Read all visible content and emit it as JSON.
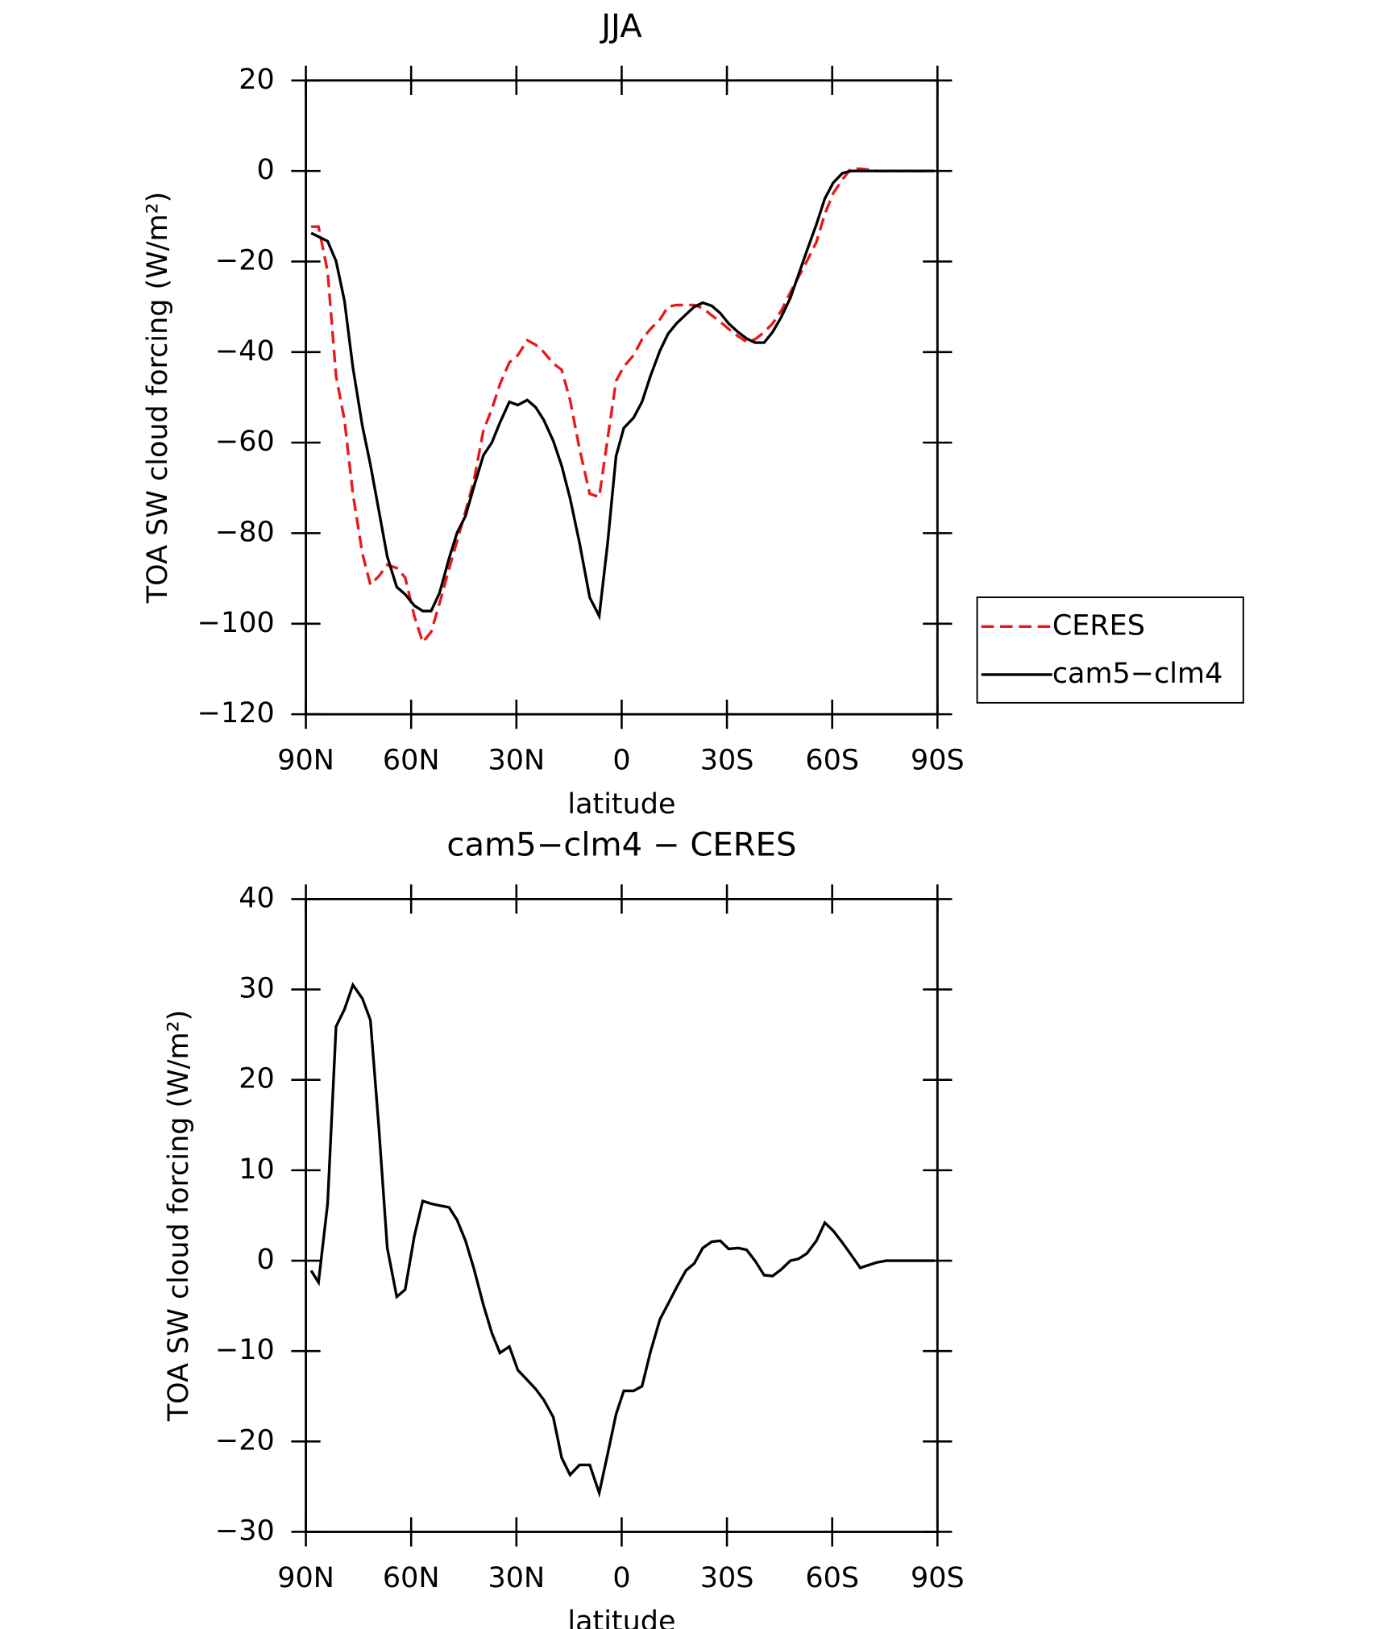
{
  "chart_data": [
    {
      "type": "line",
      "title": "JJA",
      "xlabel": "latitude",
      "ylabel": "TOA SW cloud forcing (W/m²)",
      "x": [
        88.5,
        86.4,
        83.8,
        81.4,
        79,
        76.6,
        73.9,
        71.6,
        69.2,
        66.8,
        64.1,
        61.7,
        59.1,
        56.7,
        54.3,
        51.9,
        49.2,
        46.9,
        44.5,
        42.1,
        39.4,
        37,
        34.7,
        32,
        29.6,
        26.9,
        24.5,
        22.2,
        19.5,
        17.1,
        14.7,
        12,
        9.1,
        6.4,
        4,
        1.6,
        -0.6,
        -3.4,
        -5.8,
        -8.2,
        -10.9,
        -13.2,
        -15.6,
        -18.3,
        -20.7,
        -23.1,
        -25.7,
        -28.1,
        -30.5,
        -33.2,
        -35.6,
        -38,
        -40.6,
        -43,
        -45.4,
        -48.1,
        -50.4,
        -52.8,
        -55.5,
        -57.9,
        -60.3,
        -62.9,
        -65.3,
        -68,
        -70.3,
        -72.7,
        -75.4,
        -89.1
      ],
      "xlim": [
        90,
        -90
      ],
      "xticks": [
        {
          "value": 90,
          "label": "90N"
        },
        {
          "value": 60,
          "label": "60N"
        },
        {
          "value": 30,
          "label": "30N"
        },
        0,
        {
          "value": -30,
          "label": "30S"
        },
        {
          "value": -60,
          "label": "60S"
        },
        {
          "value": -90,
          "label": "90S"
        }
      ],
      "ylim": [
        -120,
        20
      ],
      "yticks": [
        -120,
        -100,
        -80,
        -60,
        -40,
        -20,
        0,
        20
      ],
      "legend": "right",
      "series": [
        {
          "name": "CERES",
          "color": "#e8191b",
          "dash": true,
          "values": [
            -12.3,
            -12.3,
            -22.2,
            -45.3,
            -55,
            -71.3,
            -84.5,
            -91.4,
            -89.5,
            -87,
            -87.7,
            -89.8,
            -98.3,
            -104.1,
            -101.8,
            -95.5,
            -87.9,
            -81.7,
            -75.2,
            -68.3,
            -57.3,
            -52.6,
            -47.1,
            -42.3,
            -40.7,
            -37.4,
            -38.4,
            -40,
            -42.5,
            -43.9,
            -50.6,
            -61.4,
            -71.3,
            -72,
            -59.1,
            -46.4,
            -43.2,
            -40.7,
            -37.2,
            -34.9,
            -32.8,
            -30,
            -29.6,
            -29.6,
            -29.6,
            -30.3,
            -31.9,
            -33.3,
            -34.9,
            -36.5,
            -37.7,
            -37.2,
            -35.6,
            -33.7,
            -31,
            -26.8,
            -23.4,
            -19.9,
            -15.7,
            -9.5,
            -4.9,
            -1.9,
            0.5,
            0.5,
            0.3,
            0,
            0,
            0
          ]
        },
        {
          "name": "cam5-clm4",
          "color": "#000000",
          "dash": false,
          "values": [
            -13.7,
            -14.5,
            -15.5,
            -19.9,
            -28.7,
            -43.4,
            -56.3,
            -64.9,
            -75,
            -85.2,
            -91.9,
            -93.5,
            -96,
            -97.2,
            -97.2,
            -93.2,
            -85.6,
            -79.9,
            -76.2,
            -69.7,
            -62.8,
            -60,
            -55.6,
            -51,
            -51.7,
            -50.6,
            -52.2,
            -55,
            -59.6,
            -65.1,
            -72.3,
            -82.2,
            -94.2,
            -98.3,
            -82.2,
            -63,
            -56.8,
            -54.5,
            -51,
            -45.3,
            -39.7,
            -36,
            -33.7,
            -31.7,
            -30,
            -29.1,
            -29.8,
            -31.4,
            -33.7,
            -35.6,
            -37,
            -37.9,
            -37.9,
            -35.6,
            -32.4,
            -28,
            -22.9,
            -17.6,
            -11.8,
            -6.1,
            -2.6,
            -0.5,
            0,
            0,
            0,
            0,
            0,
            0
          ]
        }
      ]
    },
    {
      "type": "line",
      "title": "cam5-clm4 - CERES",
      "xlabel": "latitude",
      "ylabel": "TOA SW cloud forcing (W/m²)",
      "x": [
        88.5,
        86.4,
        83.8,
        81.4,
        79,
        76.6,
        73.9,
        71.6,
        69.2,
        66.8,
        64.1,
        61.7,
        59.1,
        56.7,
        54.3,
        51.9,
        49.2,
        46.9,
        44.5,
        42.1,
        39.4,
        37,
        34.7,
        32,
        29.6,
        26.9,
        24.5,
        22.2,
        19.5,
        17.1,
        14.7,
        12,
        9.1,
        6.4,
        4,
        1.6,
        -0.6,
        -3.4,
        -5.8,
        -8.2,
        -10.9,
        -13.2,
        -15.6,
        -18.3,
        -20.7,
        -23.1,
        -25.7,
        -28.1,
        -30.5,
        -33.2,
        -35.6,
        -38,
        -40.6,
        -43,
        -45.4,
        -48.1,
        -50.4,
        -52.8,
        -55.5,
        -57.9,
        -60.3,
        -62.9,
        -65.3,
        -68,
        -70.3,
        -72.7,
        -75.4,
        -89.1
      ],
      "xlim": [
        90,
        -90
      ],
      "xticks": [
        {
          "value": 90,
          "label": "90N"
        },
        {
          "value": 60,
          "label": "60N"
        },
        {
          "value": 30,
          "label": "30N"
        },
        0,
        {
          "value": -30,
          "label": "30S"
        },
        {
          "value": -60,
          "label": "60S"
        },
        {
          "value": -90,
          "label": "90S"
        }
      ],
      "ylim": [
        -30,
        40
      ],
      "yticks": [
        -30,
        -20,
        -10,
        0,
        10,
        20,
        30,
        40
      ],
      "series": [
        {
          "color": "#000000",
          "dash": false,
          "values": [
            -1.1,
            -2.4,
            6.3,
            25.9,
            27.8,
            30.5,
            29,
            26.6,
            14.7,
            1.4,
            -4,
            -3.2,
            2.7,
            6.6,
            6.3,
            6.1,
            5.9,
            4.5,
            2.2,
            -0.9,
            -4.9,
            -8,
            -10.2,
            -9.5,
            -12.1,
            -13.2,
            -14.2,
            -15.4,
            -17.3,
            -21.8,
            -23.7,
            -22.6,
            -22.6,
            -25.7,
            -21.4,
            -17,
            -14.4,
            -14.4,
            -13.9,
            -10.1,
            -6.5,
            -4.8,
            -3,
            -1.1,
            -0.3,
            1.4,
            2.1,
            2.2,
            1.3,
            1.4,
            1.2,
            0,
            -1.6,
            -1.7,
            -1,
            0,
            0.2,
            0.8,
            2.2,
            4.2,
            3.3,
            2,
            0.7,
            -0.8,
            -0.5,
            -0.2,
            0,
            0
          ]
        }
      ]
    }
  ]
}
